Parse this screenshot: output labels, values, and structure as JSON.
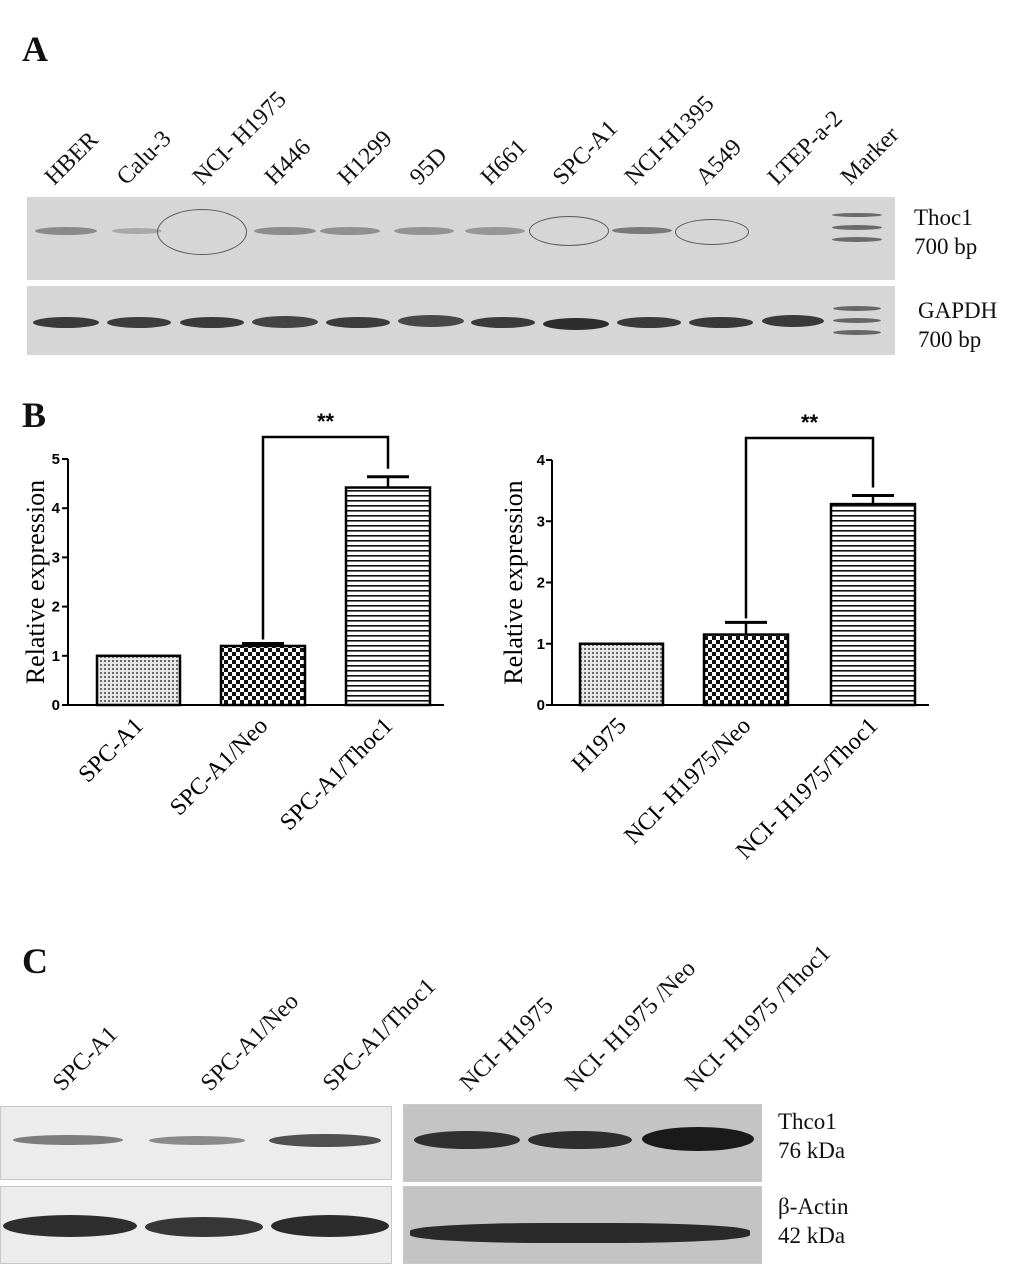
{
  "panels": {
    "a": "A",
    "b": "B",
    "c": "C"
  },
  "panel_a": {
    "lanes": [
      "HBER",
      "Calu-3",
      "NCI- H1975",
      "H446",
      "H1299",
      "95D",
      "H661",
      "SPC-A1",
      "NCI-H1395",
      "A549",
      "LTEP-a-2",
      "Marker"
    ],
    "thoc1_label": "Thoc1",
    "thoc1_size": "700 bp",
    "gapdh_label": "GAPDH",
    "gapdh_size": "700 bp",
    "circled_lanes": [
      "NCI- H1975",
      "SPC-A1",
      "A549"
    ]
  },
  "panel_c": {
    "lanes": [
      "SPC-A1",
      "SPC-A1/Neo",
      "SPC-A1/Thoc1",
      "NCI- H1975",
      "NCI- H1975 /Neo",
      "NCI- H1975 /Thoc1"
    ],
    "thco1_label": "Thco1",
    "thco1_size": "76 kDa",
    "actin_label": "β-Actin",
    "actin_size": "42 kDa"
  },
  "chart_data": [
    {
      "type": "bar",
      "categories": [
        "SPC-A1",
        "SPC-A1/Neo",
        "SPC-A1/Thoc1"
      ],
      "values": [
        1.0,
        1.2,
        4.42
      ],
      "errors": [
        0.0,
        0.05,
        0.22
      ],
      "patterns": [
        "dots",
        "checker",
        "hlines"
      ],
      "ylabel": "Relative expression",
      "ylim": [
        0,
        5
      ],
      "yticks": [
        "0",
        "1",
        "2",
        "3",
        "4",
        "5"
      ],
      "significance": {
        "from": 1,
        "to": 2,
        "label": "**"
      }
    },
    {
      "type": "bar",
      "categories": [
        "H1975",
        "NCI- H1975/Neo",
        "NCI- H1975/Thoc1"
      ],
      "values": [
        1.0,
        1.15,
        3.28
      ],
      "errors": [
        0.0,
        0.2,
        0.14
      ],
      "patterns": [
        "dots",
        "checker",
        "hlines"
      ],
      "ylabel": "Relative expression",
      "ylim": [
        0,
        4
      ],
      "yticks": [
        "0",
        "1",
        "2",
        "3",
        "4"
      ],
      "significance": {
        "from": 1,
        "to": 2,
        "label": "**"
      }
    }
  ]
}
